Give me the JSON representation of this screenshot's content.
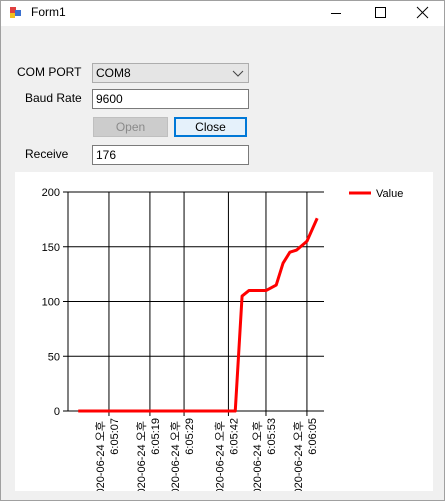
{
  "window": {
    "title": "Form1"
  },
  "form": {
    "com_port_label": "COM PORT",
    "com_port_value": "COM8",
    "baud_rate_label": "Baud Rate",
    "baud_rate_value": "9600",
    "open_button": "Open",
    "close_button": "Close",
    "receive_label": "Receive",
    "receive_value": "176"
  },
  "chart_data": {
    "type": "line",
    "x": [
      "2020-06-24T18:04:58",
      "2020-06-24T18:05:10",
      "2020-06-24T18:05:20",
      "2020-06-24T18:05:30",
      "2020-06-24T18:05:40",
      "2020-06-24T18:05:44",
      "2020-06-24T18:05:46",
      "2020-06-24T18:05:48",
      "2020-06-24T18:05:53",
      "2020-06-24T18:05:56",
      "2020-06-24T18:05:58",
      "2020-06-24T18:06:00",
      "2020-06-24T18:06:02",
      "2020-06-24T18:06:05",
      "2020-06-24T18:06:08"
    ],
    "series": [
      {
        "name": "Value",
        "color": "#ff0000",
        "values": [
          0,
          0,
          0,
          0,
          0,
          0,
          105,
          110,
          110,
          115,
          135,
          145,
          147,
          155,
          176
        ]
      }
    ],
    "xlim": [
      "2020-06-24T18:04:55",
      "2020-06-24T18:06:10"
    ],
    "xticks": [
      {
        "value": "2020-06-24T18:05:07",
        "label": "2020-06-24 오후 6:05:07"
      },
      {
        "value": "2020-06-24T18:05:19",
        "label": "2020-06-24 오후 6:05:19"
      },
      {
        "value": "2020-06-24T18:05:29",
        "label": "2020-06-24 오후 6:05:29"
      },
      {
        "value": "2020-06-24T18:05:42",
        "label": "2020-06-24 오후 6:05:42"
      },
      {
        "value": "2020-06-24T18:05:53",
        "label": "2020-06-24 오후 6:05:53"
      },
      {
        "value": "2020-06-24T18:06:05",
        "label": "2020-06-24 오후 6:06:05"
      }
    ],
    "ylim": [
      0,
      200
    ],
    "yticks": [
      0,
      50,
      100,
      150,
      200
    ],
    "grid": true,
    "legend": "top-right"
  }
}
